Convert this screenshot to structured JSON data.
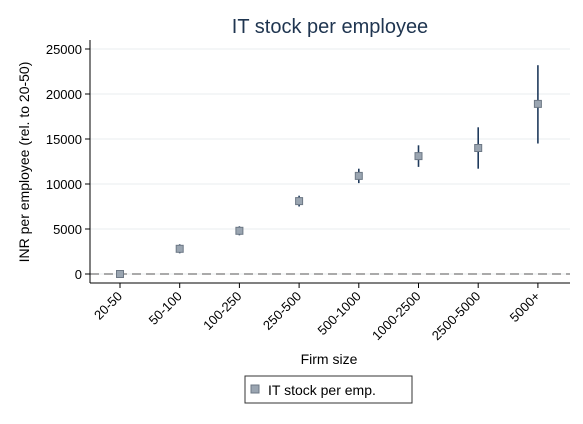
{
  "chart_data": {
    "type": "scatter",
    "title": "IT stock per employee",
    "xlabel": "Firm size",
    "ylabel": "INR per employee (rel. to 20-50)",
    "categories": [
      "20-50",
      "50-100",
      "100-250",
      "250-500",
      "500-1000",
      "1000-2500",
      "2500-5000",
      "5000+"
    ],
    "yticks": [
      0,
      5000,
      10000,
      15000,
      20000,
      25000
    ],
    "ylim": [
      -1000,
      26000
    ],
    "reference_line_y": 0,
    "grid": true,
    "legend_position": "bottom",
    "series": [
      {
        "name": "IT stock per emp.",
        "values": [
          0,
          2800,
          4800,
          8100,
          10900,
          13100,
          14000,
          18900
        ],
        "ci_low": [
          0,
          2300,
          4300,
          7500,
          10100,
          11900,
          11700,
          14500
        ],
        "ci_high": [
          0,
          3300,
          5300,
          8700,
          11700,
          14300,
          16300,
          23200
        ],
        "marker_color": "#9aa5b1",
        "marker_edge_color": "#6d7885",
        "ci_color": "#1f3a5c"
      }
    ]
  }
}
